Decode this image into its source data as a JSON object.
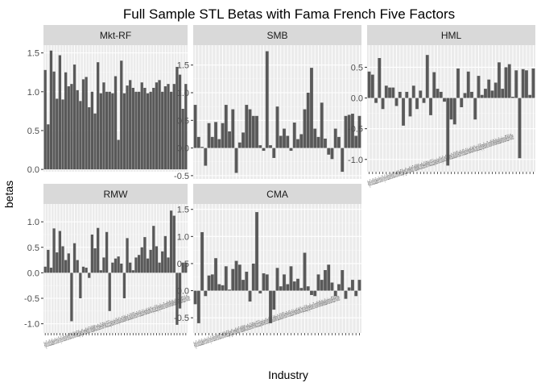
{
  "chart_data": {
    "type": "bar",
    "title": "Full Sample STL Betas with Fama French Five Factors",
    "xlabel": "Industry",
    "ylabel": "betas",
    "grid": true,
    "legend": "none",
    "bar_color": "#595959",
    "panel_bg": "#ebebeb",
    "strip_bg": "#d9d9d9",
    "categories": [
      "Agric",
      "Food",
      "Soda",
      "Beer",
      "Smoke",
      "Toys",
      "Fun",
      "Books",
      "Hshld",
      "Clths",
      "Hlth",
      "MedEq",
      "Drugs",
      "Chems",
      "Rubbr",
      "Txtls",
      "BldMt",
      "Cnstr",
      "Steel",
      "FabPr",
      "Mach",
      "ElcEq",
      "Autos",
      "Aero",
      "Ships",
      "Guns",
      "Gold",
      "Mines",
      "Coal",
      "Oil",
      "Util",
      "Telcm",
      "PerSv",
      "BusSv",
      "Hardw",
      "Softw",
      "Chips",
      "LabEq",
      "Paper",
      "Boxes",
      "Trans",
      "Whlsl",
      "Rtail",
      "Meals",
      "Banks",
      "Insur",
      "RlEst",
      "Fin",
      "Other"
    ],
    "tick_text": "AgricFoodSodaBeerSmokeToysFunBooksHshldClthsHlthMedEqDrugsChemsRubbrTxtlsBldMtCnstrSteelFabPrMachElcEqAutosAeroShipsGunsGoldMinesCoalOilUtilTelcmPerSvBusSvHardwSoftwChipsLabEqPaperBoxesTransWhlslRtailMealsBanksInsurRlEstFinOther",
    "panels": [
      {
        "name": "Mkt-RF",
        "ylim": [
          -0.03,
          1.6
        ],
        "yticks": [
          0.0,
          0.5,
          1.0,
          1.5
        ],
        "tick_labels": [
          "0.0",
          "0.5",
          "1.0",
          "1.5"
        ],
        "values": [
          1.28,
          0.58,
          1.53,
          1.26,
          0.91,
          1.47,
          0.9,
          1.25,
          1.07,
          1.1,
          1.35,
          1.02,
          0.88,
          1.16,
          1.19,
          0.8,
          1.0,
          0.72,
          1.38,
          0.98,
          1.12,
          1.0,
          1.0,
          0.98,
          1.2,
          0.38,
          1.4,
          0.98,
          1.08,
          1.15,
          1.05,
          1.0,
          1.0,
          1.12,
          1.05,
          0.98,
          1.0,
          1.05,
          1.12,
          1.15,
          1.0,
          1.07,
          1.1,
          1.0,
          1.1,
          1.32,
          1.22,
          0.78,
          1.1
        ],
        "show_xticks": false
      },
      {
        "name": "SMB",
        "ylim": [
          -0.56,
          1.86
        ],
        "yticks": [
          -0.5,
          0.0,
          0.5,
          1.0,
          1.5
        ],
        "tick_labels": [
          "-0.5",
          "0.0",
          "0.5",
          "1.0",
          "1.5"
        ],
        "values": [
          0.78,
          0.2,
          0.02,
          -0.32,
          0.45,
          0.2,
          0.47,
          0.16,
          0.45,
          0.78,
          0.3,
          0.7,
          -0.45,
          0.1,
          0.28,
          0.78,
          0.7,
          0.58,
          0.58,
          0.05,
          -0.05,
          1.75,
          0.05,
          -0.18,
          0.75,
          0.22,
          0.35,
          0.22,
          -0.05,
          0.46,
          0.16,
          0.25,
          0.7,
          1.0,
          1.45,
          0.35,
          0.2,
          0.82,
          0.17,
          -0.12,
          -0.2,
          0.35,
          0.2,
          -0.43,
          0.58,
          0.6,
          0.62,
          0.22,
          0.58
        ],
        "show_xticks": false
      },
      {
        "name": "HML",
        "ylim": [
          -1.2,
          0.86
        ],
        "yticks": [
          -1.0,
          -0.5,
          0.0,
          0.5
        ],
        "tick_labels": [
          "-1.0",
          "-0.5",
          "0.0",
          "0.5"
        ],
        "values": [
          0.43,
          0.38,
          -0.08,
          0.65,
          -0.18,
          0.2,
          0.17,
          0.17,
          -0.13,
          0.1,
          -0.45,
          0.1,
          -0.3,
          0.2,
          -0.18,
          0.12,
          -0.08,
          0.7,
          -0.28,
          0.42,
          0.15,
          0.1,
          -0.06,
          -1.1,
          -0.35,
          -0.43,
          0.48,
          -0.15,
          0.08,
          0.43,
          0.1,
          -0.35,
          0.36,
          0.05,
          0.15,
          0.3,
          0.12,
          0.25,
          0.58,
          0.15,
          0.5,
          0.55,
          0.02,
          0.45,
          -0.98,
          0.47,
          0.45,
          0.05,
          0.48
        ],
        "show_xticks": true
      },
      {
        "name": "RMW",
        "ylim": [
          -1.18,
          1.35
        ],
        "yticks": [
          -1.0,
          -0.5,
          0.0,
          0.5,
          1.0
        ],
        "tick_labels": [
          "-1.0",
          "-0.5",
          "0.0",
          "0.5",
          "1.0"
        ],
        "values": [
          0.12,
          0.45,
          0.1,
          0.87,
          0.4,
          0.82,
          0.52,
          0.25,
          0.38,
          -0.95,
          0.58,
          0.25,
          -0.5,
          0.12,
          0.1,
          -0.1,
          0.75,
          0.48,
          0.88,
          0.05,
          0.3,
          0.8,
          -0.75,
          0.2,
          0.28,
          0.32,
          0.18,
          -0.5,
          0.68,
          0.2,
          0.05,
          0.3,
          0.35,
          0.5,
          0.7,
          0.28,
          0.45,
          0.92,
          0.52,
          0.2,
          0.42,
          0.72,
          0.3,
          1.22,
          1.12,
          -1.02,
          -0.7,
          0.2,
          0.2
        ],
        "show_xticks": true
      },
      {
        "name": "CMA",
        "ylim": [
          -0.78,
          1.6
        ],
        "yticks": [
          -0.5,
          0.0,
          0.5,
          1.0,
          1.5
        ],
        "tick_labels": [
          "-0.5",
          "0.0",
          "0.5",
          "1.0",
          "1.5"
        ],
        "values": [
          -0.25,
          -0.6,
          1.08,
          -0.1,
          0.28,
          0.3,
          0.6,
          0.12,
          0.1,
          0.45,
          0.02,
          0.4,
          0.55,
          0.48,
          0.2,
          0.35,
          -0.2,
          0.5,
          1.45,
          -0.05,
          0.32,
          0.3,
          -0.6,
          -0.35,
          0.42,
          0.08,
          0.3,
          0.12,
          0.45,
          0.17,
          0.22,
          0.05,
          0.7,
          0.08,
          -0.08,
          -0.1,
          0.3,
          0.2,
          0.38,
          0.48,
          0.15,
          -0.1,
          0.12,
          0.38,
          -0.15,
          0.06,
          0.2,
          -0.1,
          0.2
        ],
        "show_xticks": true
      }
    ]
  }
}
